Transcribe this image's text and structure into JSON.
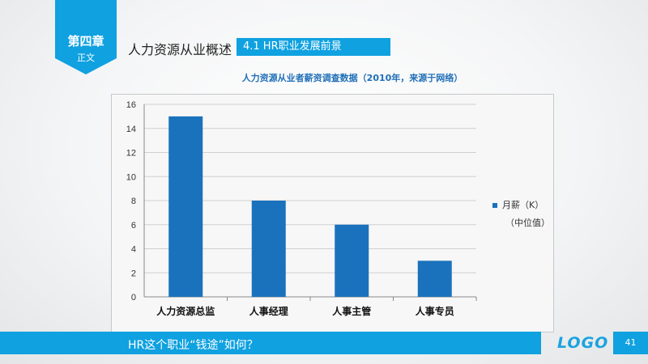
{
  "header": {
    "chapter_title": "第四章",
    "chapter_subtitle": "正文",
    "section_title": "人力资源从业概述",
    "section_tag": "4.1  HR职业发展前景"
  },
  "chart_heading": "人力资源从业者薪资调查数据（2010年，来源于网络）",
  "chart_data": {
    "type": "bar",
    "categories": [
      "人力资源总监",
      "人事经理",
      "人事主管",
      "人事专员"
    ],
    "series": [
      {
        "name": "月薪（K）",
        "values": [
          15,
          8,
          6,
          3
        ]
      }
    ],
    "ylim": [
      0,
      16
    ],
    "yticks": [
      0,
      2,
      4,
      6,
      8,
      10,
      12,
      14,
      16
    ],
    "legend": {
      "label": "月薪（K）",
      "note": "（中位值）",
      "position": "right"
    },
    "grid": true,
    "bar_color": "#1a72bd"
  },
  "footer": {
    "text": "HR这个职业“钱途”如何？",
    "logo": "LOGO",
    "page_number": "41"
  },
  "colors": {
    "accent": "#0fa1e0",
    "bar": "#1a72bd"
  }
}
